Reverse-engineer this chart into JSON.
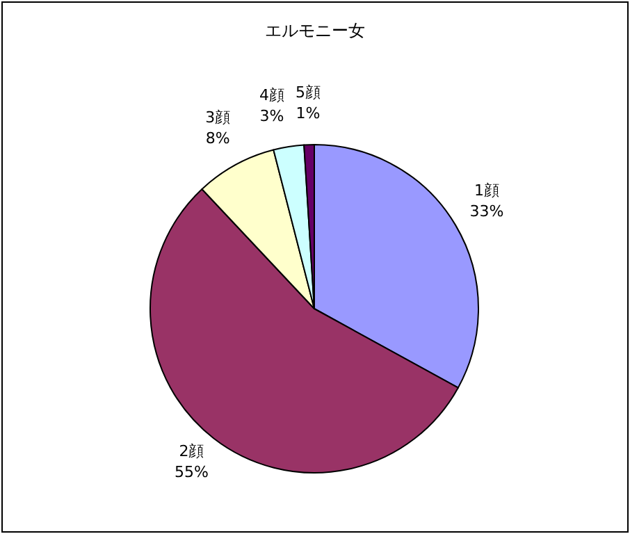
{
  "chart_data": {
    "type": "pie",
    "title": "エルモニー女",
    "categories": [
      "1顔",
      "2顔",
      "3顔",
      "4顔",
      "5顔"
    ],
    "values": [
      33,
      55,
      8,
      3,
      1
    ],
    "colors": [
      "#9999ff",
      "#993366",
      "#ffffcc",
      "#ccffff",
      "#660066"
    ],
    "value_labels": [
      "33%",
      "55%",
      "8%",
      "3%",
      "1%"
    ]
  }
}
